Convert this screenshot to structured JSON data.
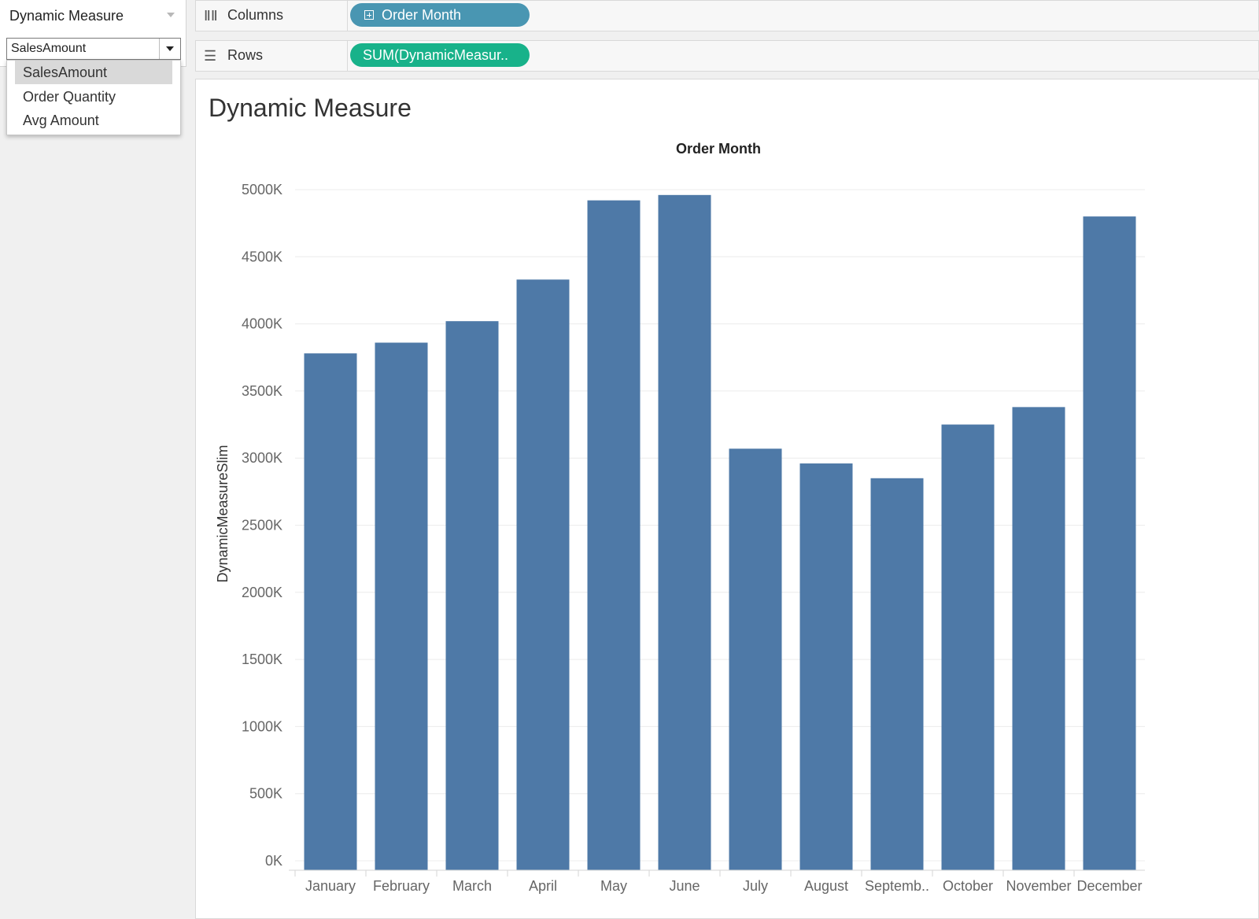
{
  "parameter": {
    "title": "Dynamic Measure",
    "selected_value": "SalesAmount",
    "options": [
      "SalesAmount",
      "Order Quantity",
      "Avg Amount"
    ]
  },
  "shelves": {
    "columns": {
      "label": "Columns",
      "pill": "Order Month"
    },
    "rows": {
      "label": "Rows",
      "pill": "SUM(DynamicMeasur.."
    }
  },
  "sheet": {
    "title": "Dynamic Measure"
  },
  "colors": {
    "bar": "#4e79a7",
    "columns_pill": "#4996b2",
    "rows_pill": "#18b28a"
  },
  "chart_data": {
    "type": "bar",
    "title": "",
    "column_header": "Order Month",
    "xlabel": "",
    "ylabel": "DynamicMeasureSlim",
    "categories": [
      "January",
      "February",
      "March",
      "April",
      "May",
      "June",
      "July",
      "August",
      "Septemb..",
      "October",
      "November",
      "December"
    ],
    "values": [
      3780,
      3860,
      4020,
      4330,
      4920,
      4960,
      3070,
      2960,
      2850,
      3250,
      3380,
      4800
    ],
    "unit": "K",
    "ylim": [
      0,
      5000
    ],
    "yticks": [
      "0K",
      "500K",
      "1000K",
      "1500K",
      "2000K",
      "2500K",
      "3000K",
      "3500K",
      "4000K",
      "4500K",
      "5000K"
    ],
    "grid": true
  }
}
